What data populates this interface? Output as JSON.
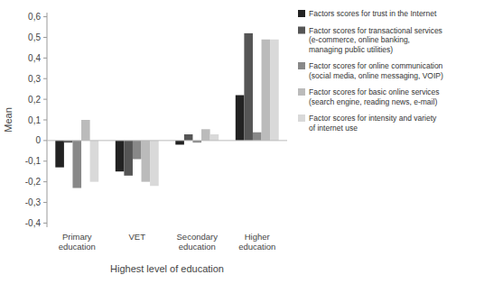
{
  "chart_data": {
    "type": "bar",
    "categories": [
      "Primary\neducation",
      "VET",
      "Secondary\neducation",
      "Higher\neducation"
    ],
    "series": [
      {
        "name": "Factors scores for trust in the Internet",
        "color": "#222222",
        "values": [
          -0.13,
          -0.15,
          -0.02,
          0.22
        ]
      },
      {
        "name": "Factor scores for transactional services\n(e-commerce, online banking,\nmanaging public utilities)",
        "color": "#555555",
        "values": [
          -0.01,
          -0.17,
          0.03,
          0.52
        ]
      },
      {
        "name": "Factor scores for online communication\n(social media, online messaging, VOIP)",
        "color": "#888888",
        "values": [
          -0.23,
          -0.09,
          -0.01,
          0.04
        ]
      },
      {
        "name": "Factor scores for basic online services\n(search engine, reading news, e-mail)",
        "color": "#bbbbbb",
        "values": [
          0.1,
          -0.2,
          0.055,
          0.49
        ]
      },
      {
        "name": "Factor scores for intensity and variety\nof internet use",
        "color": "#d9d9d9",
        "values": [
          -0.2,
          -0.22,
          0.03,
          0.49
        ]
      }
    ],
    "ylabel": "Mean",
    "xlabel": "Highest level of education",
    "ylim": [
      -0.42,
      0.62
    ],
    "yticks": [
      {
        "value": -0.4,
        "label": "-0,4"
      },
      {
        "value": -0.3,
        "label": "-0,3"
      },
      {
        "value": -0.2,
        "label": "-0,2"
      },
      {
        "value": -0.1,
        "label": "-0,1"
      },
      0,
      {
        "value": 0.1,
        "label": "0,1"
      },
      {
        "value": 0.2,
        "label": "0,2"
      },
      {
        "value": 0.3,
        "label": "0,3"
      },
      {
        "value": 0.4,
        "label": "0,4"
      },
      {
        "value": 0.5,
        "label": "0,5"
      },
      {
        "value": 0.6,
        "label": "0,6"
      }
    ],
    "grid": false,
    "legend": "right"
  }
}
